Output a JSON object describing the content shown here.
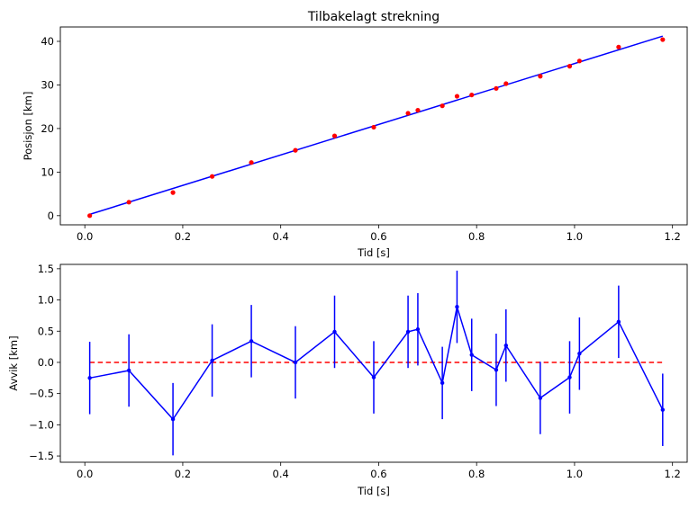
{
  "colors": {
    "fit_line": "#0000ff",
    "measurement_points": "#ff0000",
    "residual_series": "#0000ff",
    "zero_line": "#ff0000"
  },
  "chart_data": [
    {
      "type": "scatter",
      "title": "Tilbakelagt strekning",
      "xlabel": "Tid [s]",
      "ylabel": "Posisjon [km]",
      "xlim": [
        -0.05,
        1.23
      ],
      "ylim": [
        -2.1,
        43.3
      ],
      "xticks": [
        0.0,
        0.2,
        0.4,
        0.6,
        0.8,
        1.0,
        1.2
      ],
      "xtick_labels": [
        "0.0",
        "0.2",
        "0.4",
        "0.6",
        "0.8",
        "1.0",
        "1.2"
      ],
      "yticks": [
        0,
        10,
        20,
        30,
        40
      ],
      "ytick_labels": [
        "0",
        "10",
        "20",
        "30",
        "40"
      ],
      "grid": false,
      "points": {
        "x": [
          0.01,
          0.09,
          0.18,
          0.26,
          0.34,
          0.43,
          0.51,
          0.59,
          0.66,
          0.68,
          0.73,
          0.76,
          0.79,
          0.84,
          0.86,
          0.93,
          0.99,
          1.01,
          1.09,
          1.18
        ],
        "y": [
          0.0,
          3.1,
          5.3,
          9.0,
          12.2,
          15.0,
          18.3,
          20.3,
          23.5,
          24.2,
          25.2,
          27.4,
          27.7,
          29.2,
          30.3,
          32.0,
          34.3,
          35.5,
          38.7,
          40.4
        ]
      },
      "fit_line": {
        "x": [
          0.01,
          1.18
        ],
        "y": [
          0.3,
          41.2
        ]
      }
    },
    {
      "type": "line",
      "title": "",
      "xlabel": "Tid [s]",
      "ylabel": "Avvik [km]",
      "xlim": [
        -0.05,
        1.23
      ],
      "ylim": [
        -1.6,
        1.57
      ],
      "xticks": [
        0.0,
        0.2,
        0.4,
        0.6,
        0.8,
        1.0,
        1.2
      ],
      "xtick_labels": [
        "0.0",
        "0.2",
        "0.4",
        "0.6",
        "0.8",
        "1.0",
        "1.2"
      ],
      "yticks": [
        -1.5,
        -1.0,
        -0.5,
        0.0,
        0.5,
        1.0,
        1.5
      ],
      "ytick_labels": [
        "−1.5",
        "−1.0",
        "−0.5",
        "0.0",
        "0.5",
        "1.0",
        "1.5"
      ],
      "grid": false,
      "series": [
        {
          "x": [
            0.01,
            0.09,
            0.18,
            0.26,
            0.34,
            0.43,
            0.51,
            0.59,
            0.66,
            0.68,
            0.73,
            0.76,
            0.79,
            0.84,
            0.86,
            0.93,
            0.99,
            1.01,
            1.09,
            1.18
          ],
          "y": [
            -0.25,
            -0.13,
            -0.91,
            0.03,
            0.34,
            0.0,
            0.49,
            -0.24,
            0.49,
            0.53,
            -0.33,
            0.89,
            0.12,
            -0.12,
            0.27,
            -0.57,
            -0.24,
            0.14,
            0.65,
            -0.76
          ],
          "error": 0.58
        }
      ],
      "reference_line": {
        "y": 0.0,
        "x": [
          0.01,
          1.18
        ],
        "style": "dashed"
      }
    }
  ]
}
